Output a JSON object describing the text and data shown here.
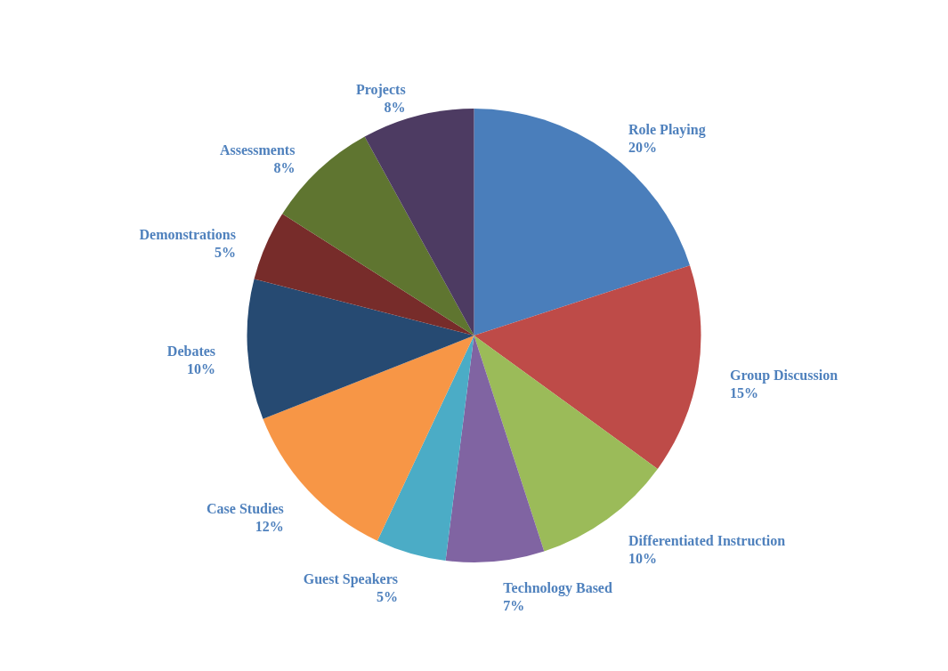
{
  "chart_data": {
    "type": "pie",
    "categories": [
      "Role Playing",
      "Group Discussion",
      "Differentiated Instruction",
      "Technology Based",
      "Guest Speakers",
      "Case Studies",
      "Debates",
      "Demonstrations",
      "Assessments",
      "Projects"
    ],
    "values": [
      20,
      15,
      10,
      7,
      5,
      12,
      10,
      5,
      8,
      8
    ],
    "value_labels": [
      "20%",
      "15%",
      "10%",
      "7%",
      "5%",
      "12%",
      "10%",
      "5%",
      "8%",
      "8%"
    ],
    "colors": [
      "#4a7ebb",
      "#be4b48",
      "#9bbb59",
      "#8064a2",
      "#4bacc6",
      "#f79646",
      "#264a72",
      "#772c2a",
      "#5f7530",
      "#4d3b62"
    ]
  }
}
